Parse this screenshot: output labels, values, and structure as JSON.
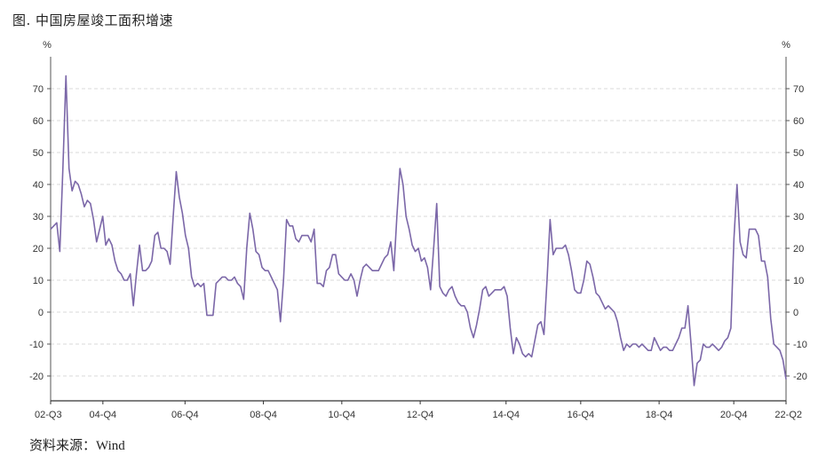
{
  "title": "图. 中国房屋竣工面积增速",
  "source_label": "资料来源：",
  "source_value": "Wind",
  "chart_data": {
    "type": "line",
    "title": "图. 中国房屋竣工面积增速",
    "left_unit": "%",
    "right_unit": "%",
    "ylim": [
      -25,
      80
    ],
    "yticks": [
      70,
      60,
      50,
      40,
      30,
      20,
      10,
      0,
      -10,
      -20
    ],
    "xticks": [
      "02-Q3",
      "04-Q4",
      "06-Q4",
      "08-Q4",
      "10-Q4",
      "12-Q4",
      "14-Q4",
      "16-Q4",
      "18-Q4",
      "20-Q4",
      "22-Q2"
    ],
    "xtick_index": [
      0,
      14,
      36,
      57,
      78,
      99,
      122,
      142,
      163,
      183,
      197
    ],
    "grid": true,
    "color": "#7b67a8",
    "series": [
      {
        "values": [
          26,
          27,
          28,
          19,
          45,
          74,
          45,
          38,
          41,
          40,
          37,
          33,
          35,
          34,
          29,
          22,
          26,
          30,
          21,
          23,
          21,
          16,
          13,
          12,
          10,
          10,
          12,
          2,
          12,
          21,
          13,
          13,
          14,
          16,
          24,
          25,
          20,
          20,
          19,
          15,
          30,
          44,
          36,
          31,
          24,
          20,
          11,
          8,
          9,
          8,
          9,
          -1,
          -1,
          -1,
          9,
          10,
          11,
          11,
          10,
          10,
          11,
          9,
          8,
          4,
          20,
          31,
          26,
          19,
          18,
          14,
          13,
          13,
          11,
          9,
          7,
          -3,
          10,
          29,
          27,
          27,
          23,
          22,
          24,
          24,
          24,
          22,
          26,
          9,
          9,
          8,
          13,
          14,
          18,
          18,
          12,
          11,
          10,
          10,
          12,
          10,
          5,
          10,
          14,
          15,
          14,
          13,
          13,
          13,
          15,
          17,
          18,
          22,
          13,
          30,
          45,
          40,
          30,
          26,
          21,
          19,
          20,
          16,
          17,
          14,
          7,
          20,
          34,
          8,
          6,
          5,
          7,
          8,
          5,
          3,
          2,
          2,
          0,
          -5,
          -8,
          -4,
          1,
          7,
          8,
          5,
          6,
          7,
          7,
          7,
          8,
          5,
          -5,
          -13,
          -8,
          -10,
          -13,
          -14,
          -13,
          -14,
          -9,
          -4,
          -3,
          -7,
          10,
          29,
          18,
          20,
          20,
          20,
          21,
          18,
          13,
          7,
          6,
          6,
          10,
          16,
          15,
          11,
          6,
          5,
          3,
          1,
          2,
          1,
          0,
          -3,
          -8,
          -12,
          -10,
          -11,
          -10,
          -10,
          -11,
          -10,
          -11,
          -12,
          -12,
          -8,
          -10,
          -12,
          -11,
          -11,
          -12,
          -12,
          -10,
          -8,
          -5,
          -5,
          2,
          -10,
          -23,
          -16,
          -15,
          -10,
          -11,
          -11,
          -10,
          -11,
          -12,
          -11,
          -9,
          -8,
          -5,
          23,
          40,
          22,
          18,
          17,
          26,
          26,
          26,
          24,
          16,
          16,
          11,
          -2,
          -10,
          -11,
          -12,
          -15,
          -21
        ]
      }
    ]
  }
}
